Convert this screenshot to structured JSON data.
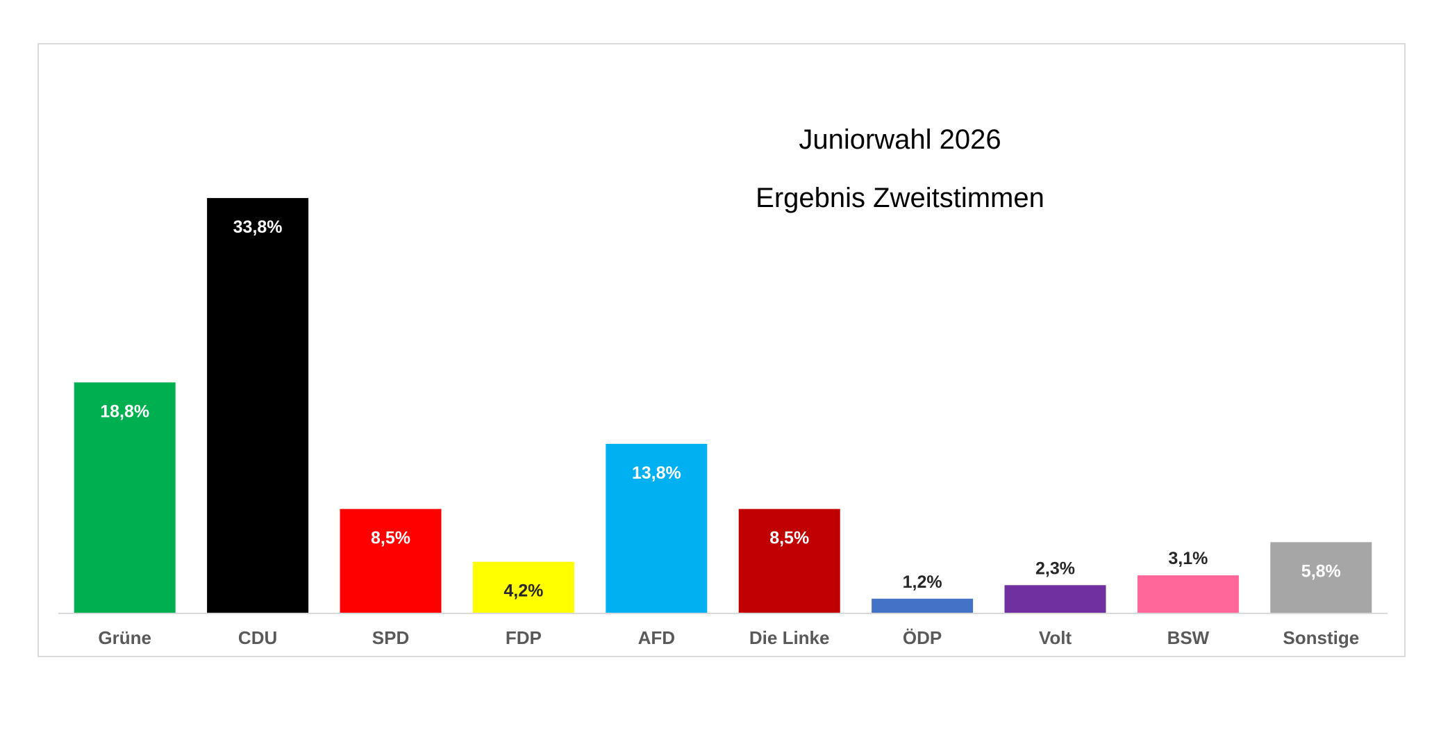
{
  "chart_data": {
    "type": "bar",
    "title": "Juniorwahl 2026",
    "subtitle": "Ergebnis Zweitstimmen",
    "xlabel": "",
    "ylabel": "",
    "ylim": [
      0,
      40
    ],
    "grid": false,
    "legend": "none",
    "categories": [
      "Grüne",
      "CDU",
      "SPD",
      "FDP",
      "AFD",
      "Die Linke",
      "ÖDP",
      "Volt",
      "BSW",
      "Sonstige"
    ],
    "values": [
      18.8,
      33.8,
      8.5,
      4.2,
      13.8,
      8.5,
      1.2,
      2.3,
      3.1,
      5.8
    ],
    "labels": [
      "18,8%",
      "33,8%",
      "8,5%",
      "4,2%",
      "13,8%",
      "8,5%",
      "1,2%",
      "2,3%",
      "3,1%",
      "5,8%"
    ],
    "label_positions": [
      "inside",
      "inside",
      "inside",
      "inside",
      "inside",
      "inside",
      "above",
      "above",
      "above",
      "inside"
    ],
    "colors": [
      "#00B050",
      "#000000",
      "#FF0000",
      "#FFFF00",
      "#00B0F0",
      "#C00000",
      "#4472C4",
      "#7030A0",
      "#FF6699",
      "#A6A6A6"
    ],
    "label_colors": [
      "#FFFFFF",
      "#FFFFFF",
      "#FFFFFF",
      "#262626",
      "#FFFFFF",
      "#FFFFFF",
      "#262626",
      "#262626",
      "#262626",
      "#FFFFFF"
    ]
  }
}
